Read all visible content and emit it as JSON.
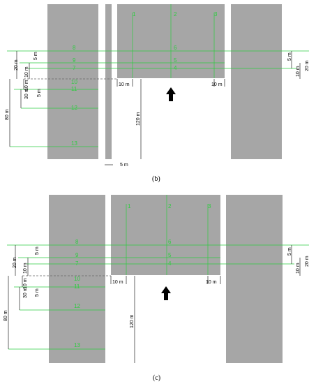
{
  "panels": [
    {
      "caption": "(b)",
      "points": [
        "1",
        "2",
        "3",
        "6",
        "5",
        "4",
        "8",
        "9",
        "7",
        "10",
        "11",
        "12",
        "13"
      ],
      "dims": {
        "d20_left": "20 m",
        "d5_left": "5 m",
        "d10_left_a": "10 m",
        "d10_left_b": "10 m",
        "d30": "30 m",
        "d5_left_b": "5 m",
        "d80": "80 m",
        "d120": "120 m",
        "d10_inner_l": "10 m",
        "d10_inner_r": "10 m",
        "d5_right": "5 m",
        "d20_right": "20 m",
        "d10_right": "10 m",
        "d5_gap": "5 m"
      }
    },
    {
      "caption": "(c)",
      "points": [
        "1",
        "2",
        "3",
        "6",
        "5",
        "4",
        "8",
        "9",
        "7",
        "10",
        "11",
        "12",
        "13"
      ],
      "dims": {
        "d20_left": "20 m",
        "d5_left": "5 m",
        "d10_left_a": "10 m",
        "d10_left_b": "10 m",
        "d30": "30 m",
        "d5_left_b": "5 m",
        "d80": "80 m",
        "d120": "120 m",
        "d10_inner_l": "10 m",
        "d10_inner_r": "10 m",
        "d5_right": "5 m",
        "d20_right": "20 m",
        "d10_right": "10 m"
      }
    }
  ],
  "colors": {
    "building": "#a6a6a6",
    "measure": "#2ecc40",
    "dimension": "#000000"
  },
  "icons": {
    "wind": "arrow-up-icon"
  }
}
